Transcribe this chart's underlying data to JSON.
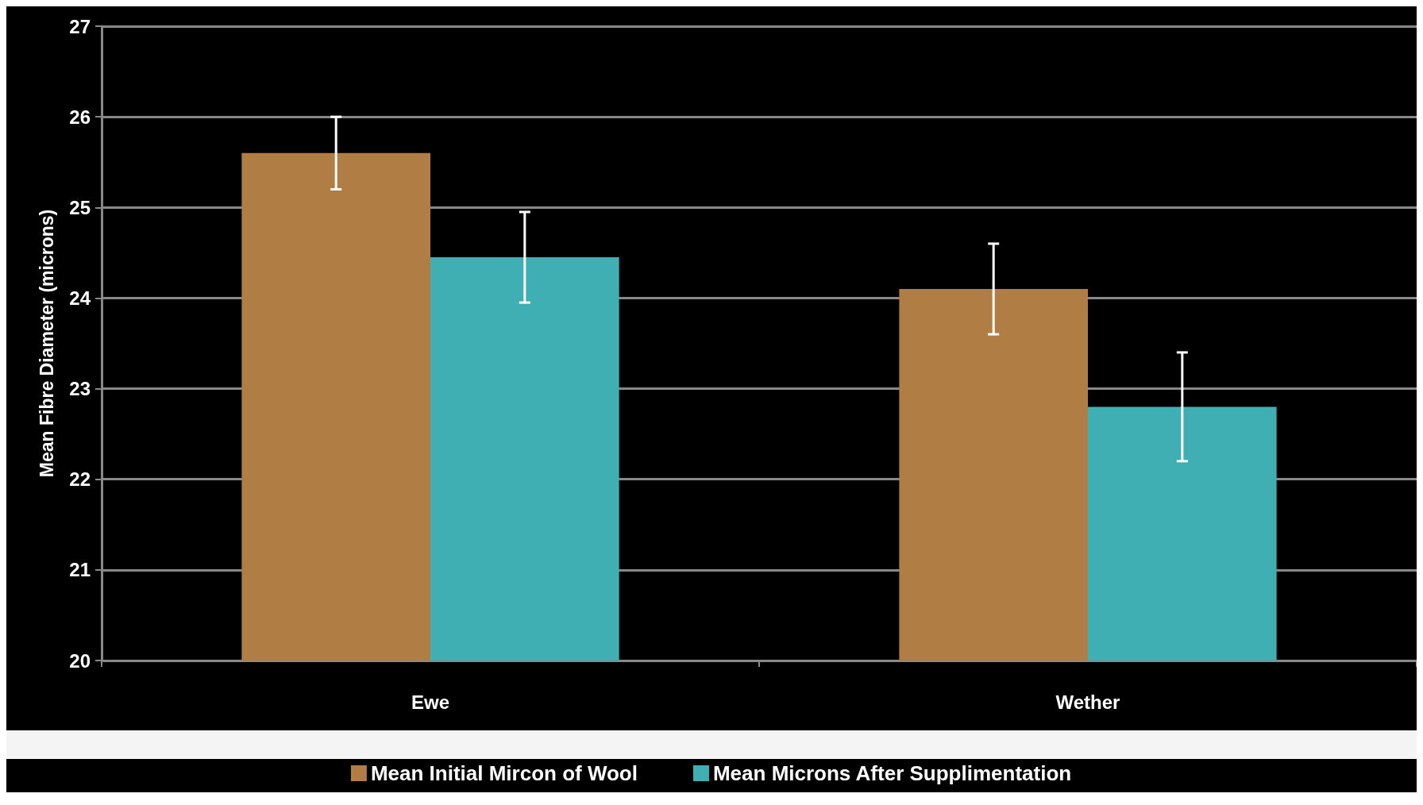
{
  "chart_data": {
    "type": "bar",
    "ylabel": "Mean Fibre Diameter (microns)",
    "categories": [
      "Ewe",
      "Wether"
    ],
    "series": [
      {
        "name": "Mean Initial Mircon of Wool",
        "color": "#b07d45",
        "values": [
          25.6,
          24.1
        ],
        "errors": [
          0.4,
          0.5
        ]
      },
      {
        "name": "Mean Microns After Supplimentation",
        "color": "#40afb3",
        "values": [
          24.45,
          22.8
        ],
        "errors": [
          0.5,
          0.6
        ]
      }
    ],
    "ylim": [
      20,
      27
    ],
    "yticks": [
      20,
      21,
      22,
      23,
      24,
      25,
      26,
      27
    ],
    "grid": "y",
    "legend": "bottom"
  }
}
